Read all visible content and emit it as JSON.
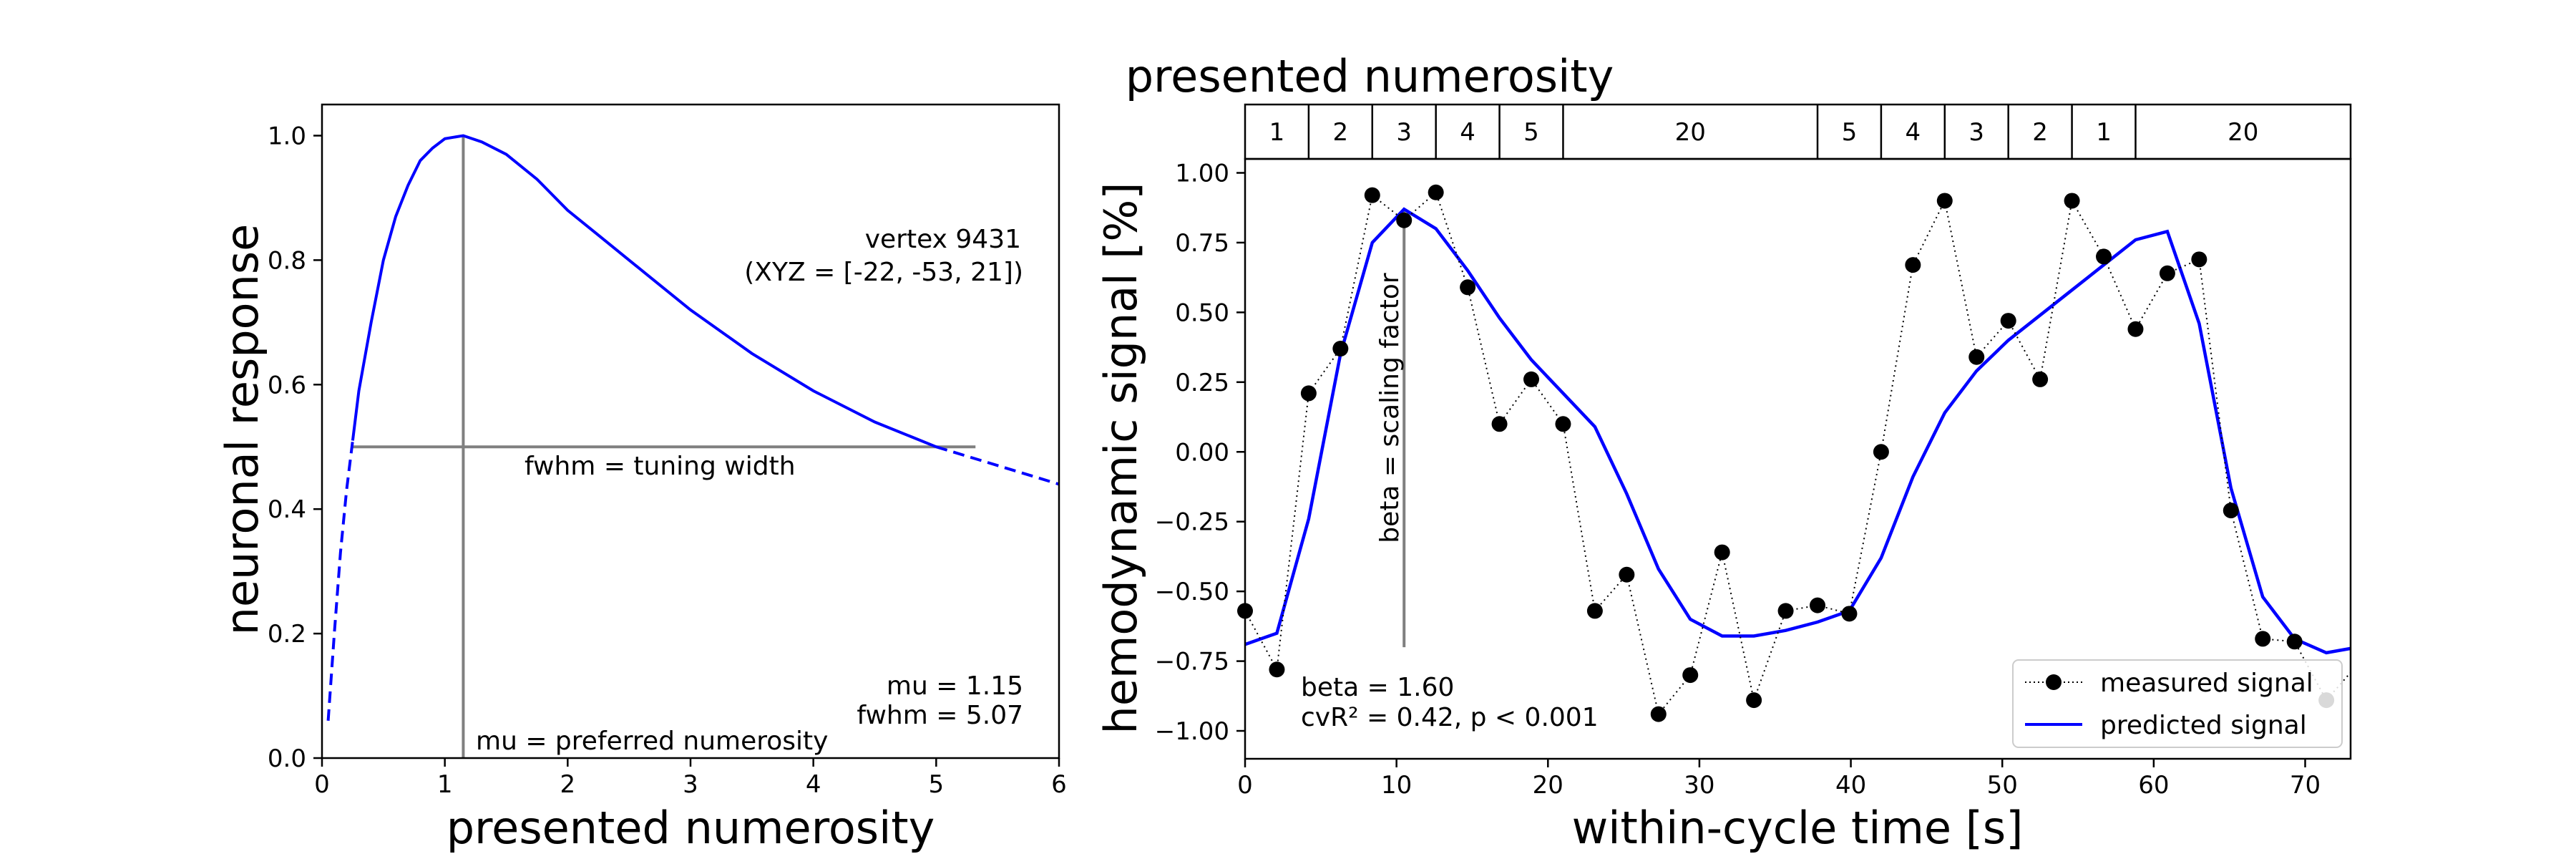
{
  "chart_data": [
    {
      "type": "line",
      "xlabel": "presented numerosity",
      "ylabel": "neuronal response",
      "xlim": [
        0,
        6
      ],
      "ylim": [
        0,
        1.05
      ],
      "xticks": [
        0,
        1,
        2,
        3,
        4,
        5,
        6
      ],
      "yticks": [
        0.0,
        0.2,
        0.4,
        0.6,
        0.8,
        1.0
      ],
      "tuning": {
        "mu": 1.15,
        "fwhm": 5.07,
        "solid_range": [
          0.25,
          5.0
        ]
      },
      "series": [
        {
          "color": "#0000ff",
          "x": [
            0.05,
            0.1,
            0.15,
            0.2,
            0.25,
            0.3,
            0.4,
            0.5,
            0.6,
            0.7,
            0.8,
            0.9,
            1.0,
            1.15,
            1.3,
            1.5,
            1.75,
            2.0,
            2.25,
            2.5,
            2.75,
            3.0,
            3.5,
            4.0,
            4.5,
            5.0,
            5.5,
            6.0
          ],
          "y": [
            0.06,
            0.2,
            0.33,
            0.43,
            0.51,
            0.59,
            0.7,
            0.8,
            0.87,
            0.92,
            0.96,
            0.98,
            0.995,
            1.0,
            0.99,
            0.97,
            0.93,
            0.88,
            0.84,
            0.8,
            0.76,
            0.72,
            0.65,
            0.59,
            0.54,
            0.5,
            0.47,
            0.44
          ]
        }
      ],
      "annotations": {
        "vertex_line1": "vertex 9431",
        "vertex_line2": "(XYZ = [-22, -53, 21])",
        "fwhm_label": "fwhm = tuning width",
        "mu_label": "mu = preferred numerosity",
        "mu_value": "mu = 1.15",
        "fwhm_value": "fwhm = 5.07"
      }
    },
    {
      "type": "line",
      "title": "presented numerosity",
      "xlabel": "within-cycle time [s]",
      "ylabel": "hemodynamic signal [%]",
      "xlim": [
        0,
        73
      ],
      "ylim": [
        -1.1,
        1.05
      ],
      "xticks": [
        0,
        10,
        20,
        30,
        40,
        50,
        60,
        70
      ],
      "yticks": [
        -1.0,
        -0.75,
        -0.5,
        -0.25,
        0.0,
        0.25,
        0.5,
        0.75,
        1.0
      ],
      "ytick_labels": [
        "−1.00",
        "−0.75",
        "−0.50",
        "−0.25",
        "0.00",
        "0.25",
        "0.50",
        "0.75",
        "1.00"
      ],
      "stimulus_blocks": [
        {
          "label": "1",
          "start": 0,
          "end": 4.2
        },
        {
          "label": "2",
          "start": 4.2,
          "end": 8.4
        },
        {
          "label": "3",
          "start": 8.4,
          "end": 12.6
        },
        {
          "label": "4",
          "start": 12.6,
          "end": 16.8
        },
        {
          "label": "5",
          "start": 16.8,
          "end": 21.0
        },
        {
          "label": "20",
          "start": 21.0,
          "end": 37.8
        },
        {
          "label": "5",
          "start": 37.8,
          "end": 42.0
        },
        {
          "label": "4",
          "start": 42.0,
          "end": 46.2
        },
        {
          "label": "3",
          "start": 46.2,
          "end": 50.4
        },
        {
          "label": "2",
          "start": 50.4,
          "end": 54.6
        },
        {
          "label": "1",
          "start": 54.6,
          "end": 58.8
        },
        {
          "label": "20",
          "start": 58.8,
          "end": 73
        }
      ],
      "series": [
        {
          "name": "measured signal",
          "color": "#000000",
          "x": [
            0,
            2.1,
            4.2,
            6.3,
            8.4,
            10.5,
            12.6,
            14.7,
            16.8,
            18.9,
            21.0,
            23.1,
            25.2,
            27.3,
            29.4,
            31.5,
            33.6,
            35.7,
            37.8,
            39.9,
            42.0,
            44.1,
            46.2,
            48.3,
            50.4,
            52.5,
            54.6,
            56.7,
            58.8,
            60.9,
            63.0,
            65.1,
            67.2,
            69.3,
            71.4,
            73.5
          ],
          "y": [
            -0.57,
            -0.78,
            0.21,
            0.37,
            0.92,
            0.83,
            0.93,
            0.59,
            0.1,
            0.26,
            0.1,
            -0.57,
            -0.44,
            -0.94,
            -0.8,
            -0.36,
            -0.89,
            -0.57,
            -0.55,
            -0.58,
            0.0,
            0.67,
            0.9,
            0.34,
            0.47,
            0.26,
            0.9,
            0.7,
            0.44,
            0.64,
            0.69,
            -0.21,
            -0.67,
            -0.68,
            -0.89,
            -0.76
          ]
        },
        {
          "name": "predicted signal",
          "color": "#0000ff",
          "x": [
            0,
            2.1,
            4.2,
            6.3,
            8.4,
            10.5,
            12.6,
            14.7,
            16.8,
            18.9,
            21.0,
            23.1,
            25.2,
            27.3,
            29.4,
            31.5,
            33.6,
            35.7,
            37.8,
            39.9,
            42.0,
            44.1,
            46.2,
            48.3,
            50.4,
            52.5,
            54.6,
            56.7,
            58.8,
            60.9,
            63.0,
            65.1,
            67.2,
            69.3,
            71.4,
            73.5
          ],
          "y": [
            -0.69,
            -0.65,
            -0.24,
            0.35,
            0.75,
            0.87,
            0.8,
            0.65,
            0.48,
            0.33,
            0.21,
            0.09,
            -0.15,
            -0.42,
            -0.6,
            -0.66,
            -0.66,
            -0.64,
            -0.61,
            -0.57,
            -0.38,
            -0.09,
            0.14,
            0.29,
            0.4,
            0.49,
            0.58,
            0.67,
            0.76,
            0.79,
            0.46,
            -0.13,
            -0.52,
            -0.67,
            -0.72,
            -0.7
          ]
        }
      ],
      "beta_marker_x": 10.5,
      "legend_position": "lower-right",
      "annotations": {
        "beta_label": "beta = scaling factor",
        "beta_value": "beta = 1.60",
        "fit_stats": "cvR² = 0.42, p < 0.001"
      }
    }
  ]
}
